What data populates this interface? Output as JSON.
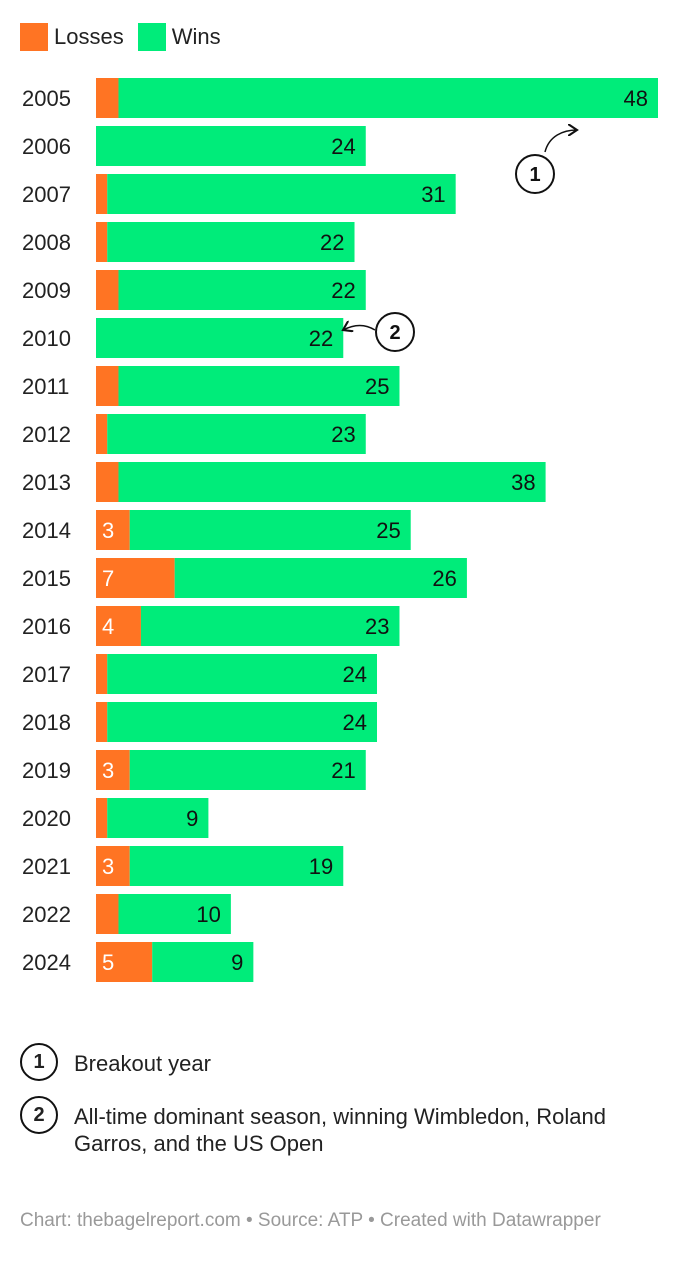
{
  "legend": [
    {
      "label": "Losses",
      "color": "#ff7423"
    },
    {
      "label": "Wins",
      "color": "#00ec7a"
    }
  ],
  "chart_data": {
    "type": "bar",
    "orientation": "horizontal",
    "stacked": true,
    "categories": [
      "2005",
      "2006",
      "2007",
      "2008",
      "2009",
      "2010",
      "2011",
      "2012",
      "2013",
      "2014",
      "2015",
      "2016",
      "2017",
      "2018",
      "2019",
      "2020",
      "2021",
      "2022",
      "2024"
    ],
    "series": [
      {
        "name": "Losses",
        "color": "#ff7423",
        "values": [
          2,
          0,
          1,
          1,
          2,
          0,
          2,
          1,
          2,
          3,
          7,
          4,
          1,
          1,
          3,
          1,
          3,
          2,
          5
        ],
        "labels": [
          "",
          "",
          "",
          "",
          "",
          "",
          "",
          "",
          "",
          "3",
          "7",
          "4",
          "",
          "",
          "3",
          "",
          "3",
          "",
          "5"
        ]
      },
      {
        "name": "Wins",
        "color": "#00ec7a",
        "values": [
          48,
          24,
          31,
          22,
          22,
          22,
          25,
          23,
          38,
          25,
          26,
          23,
          24,
          24,
          21,
          9,
          19,
          10,
          9
        ],
        "labels": [
          "48",
          "24",
          "31",
          "22",
          "22",
          "22",
          "25",
          "23",
          "38",
          "25",
          "26",
          "23",
          "24",
          "24",
          "21",
          "9",
          "19",
          "10",
          "9"
        ]
      }
    ],
    "grid": false,
    "legend_position": "top-left",
    "annotations": [
      {
        "number": "1",
        "year": "2005"
      },
      {
        "number": "2",
        "year": "2010"
      }
    ]
  },
  "notes": [
    {
      "number": "1",
      "text": "Breakout year"
    },
    {
      "number": "2",
      "text": "All-time dominant season, winning Wimbledon, Roland Garros, and the US Open"
    }
  ],
  "footer": "Chart: thebagelreport.com • Source: ATP • Created with Datawrapper"
}
